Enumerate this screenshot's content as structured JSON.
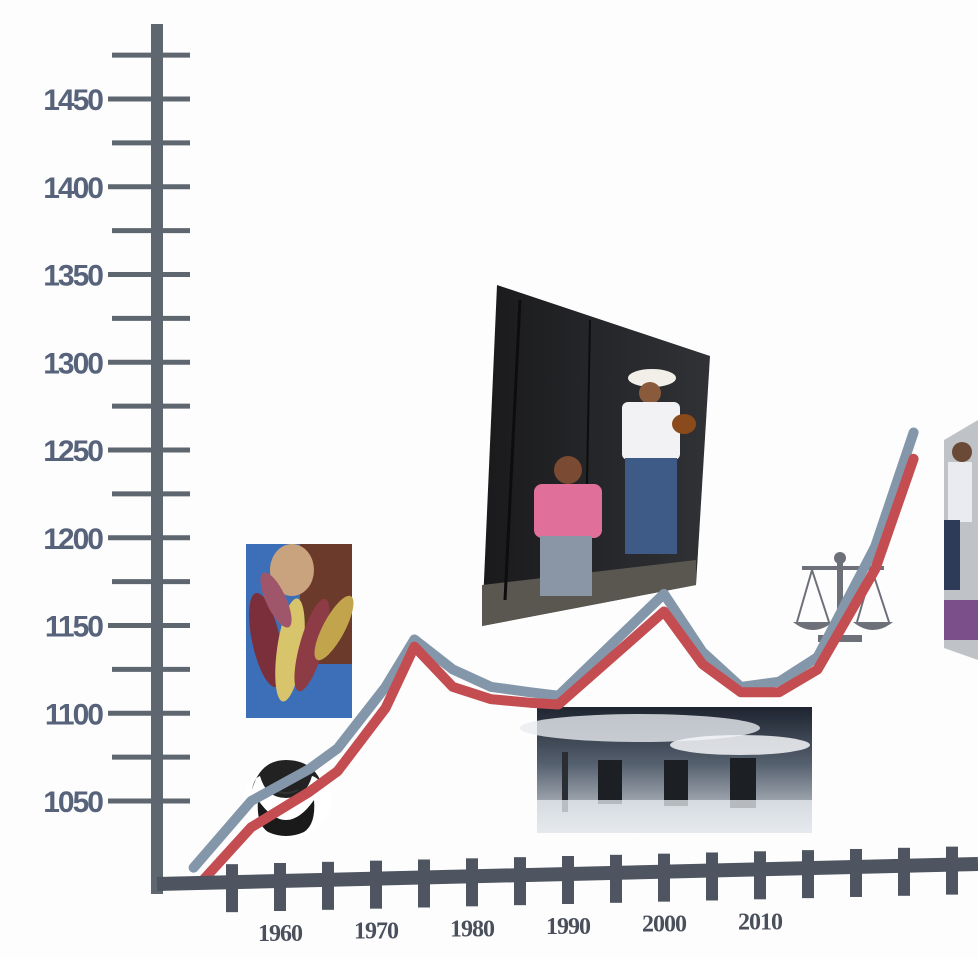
{
  "chart_data": {
    "type": "line",
    "title": "",
    "xlabel": "",
    "ylabel": "",
    "y_ticks": [
      1050,
      1100,
      1150,
      1200,
      1250,
      1300,
      1350,
      1400,
      1450
    ],
    "x_ticks": [
      1960,
      1970,
      1980,
      1990,
      2000,
      2010
    ],
    "ylim": [
      1000,
      1490
    ],
    "grid": false,
    "series": [
      {
        "color": "#8497aa",
        "x": [
          1951,
          1957,
          1963,
          1966,
          1971,
          1974,
          1978,
          1982,
          1986,
          1989,
          2000,
          2004,
          2008,
          2012,
          2016,
          2022,
          2026
        ],
        "values": [
          1012,
          1050,
          1068,
          1080,
          1115,
          1142,
          1125,
          1115,
          1112,
          1110,
          1168,
          1135,
          1115,
          1118,
          1132,
          1195,
          1260
        ]
      },
      {
        "color": "#c44d52",
        "x": [
          1952,
          1957,
          1963,
          1966,
          1971,
          1974,
          1978,
          1982,
          1986,
          1989,
          2000,
          2004,
          2008,
          2012,
          2016,
          2022,
          2026
        ],
        "values": [
          1005,
          1035,
          1055,
          1067,
          1103,
          1138,
          1115,
          1108,
          1106,
          1105,
          1158,
          1128,
          1112,
          1112,
          1125,
          1182,
          1245
        ]
      }
    ],
    "images": [
      {
        "icon": "corn-photo"
      },
      {
        "icon": "marx-portrait"
      },
      {
        "icon": "street-musician-photo"
      },
      {
        "icon": "smokestacks-photo"
      },
      {
        "icon": "scales-of-justice-icon"
      },
      {
        "icon": "crowd-photo"
      }
    ]
  }
}
